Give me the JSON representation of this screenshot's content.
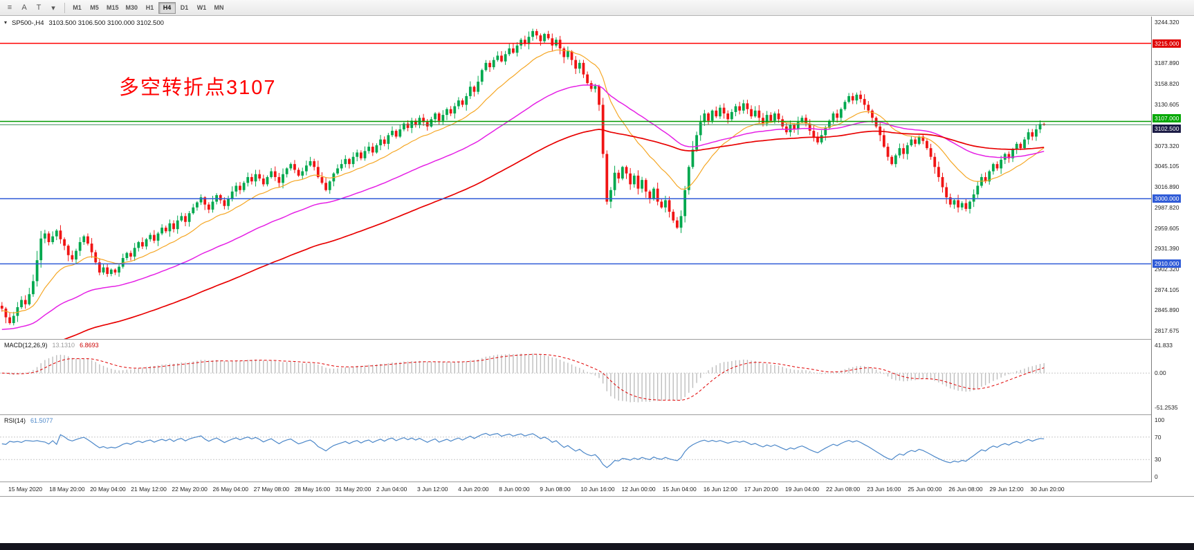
{
  "toolbar": {
    "left_icons": [
      {
        "name": "chart-properties-icon",
        "glyph": "≡"
      },
      {
        "name": "cursor-a-button",
        "glyph": "A"
      },
      {
        "name": "text-tool-button",
        "glyph": "T"
      },
      {
        "name": "dropdown-caret-icon",
        "glyph": "▾"
      }
    ],
    "timeframes": [
      "M1",
      "M5",
      "M15",
      "M30",
      "H1",
      "H4",
      "D1",
      "W1",
      "MN"
    ],
    "active_timeframe": "H4"
  },
  "chart_header": {
    "arrow": "▾",
    "symbol": "SP500-,H4",
    "ohlc": "3103.500 3106.500 3100.000 3102.500"
  },
  "annotation": {
    "text": "多空转折点3107",
    "color": "#ff0000"
  },
  "chart_data": {
    "type": "candlestick",
    "symbol": "SP500-",
    "timeframe": "H4",
    "ohlc_display": {
      "open": "3103.500",
      "high": "3106.500",
      "low": "3100.000",
      "close": "3102.500"
    },
    "visible_price_range": {
      "min": 2806,
      "max": 3252
    },
    "candle_colors": {
      "up": "#00a84e",
      "down": "#f01414"
    },
    "closes": [
      2848,
      2836,
      2828,
      2838,
      2850,
      2860,
      2854,
      2868,
      2886,
      2915,
      2945,
      2952,
      2940,
      2948,
      2956,
      2944,
      2935,
      2922,
      2916,
      2928,
      2940,
      2948,
      2938,
      2926,
      2912,
      2898,
      2905,
      2896,
      2902,
      2898,
      2906,
      2918,
      2925,
      2920,
      2932,
      2940,
      2934,
      2944,
      2950,
      2942,
      2952,
      2960,
      2955,
      2966,
      2958,
      2970,
      2976,
      2968,
      2980,
      2988,
      2995,
      3002,
      2992,
      2985,
      2996,
      3005,
      2998,
      2990,
      3000,
      3010,
      3018,
      3012,
      3022,
      3030,
      3024,
      3034,
      3028,
      3020,
      3030,
      3038,
      3030,
      3022,
      3034,
      3042,
      3048,
      3040,
      3032,
      3038,
      3046,
      3052,
      3044,
      3030,
      3022,
      3012,
      3024,
      3035,
      3042,
      3048,
      3055,
      3048,
      3058,
      3064,
      3056,
      3066,
      3072,
      3064,
      3074,
      3082,
      3076,
      3088,
      3094,
      3086,
      3096,
      3104,
      3098,
      3108,
      3102,
      3112,
      3106,
      3100,
      3110,
      3118,
      3108,
      3116,
      3124,
      3118,
      3128,
      3136,
      3130,
      3142,
      3155,
      3148,
      3162,
      3178,
      3188,
      3182,
      3192,
      3198,
      3190,
      3200,
      3208,
      3202,
      3212,
      3220,
      3214,
      3224,
      3232,
      3226,
      3218,
      3228,
      3222,
      3212,
      3220,
      3208,
      3196,
      3204,
      3192,
      3180,
      3188,
      3172,
      3160,
      3152,
      3156,
      3130,
      3062,
      2996,
      3012,
      3036,
      3028,
      3044,
      3035,
      3020,
      3032,
      3014,
      3026,
      3010,
      3000,
      3014,
      2996,
      2988,
      2998,
      2982,
      2970,
      2960,
      2976,
      3012,
      3044,
      3068,
      3088,
      3106,
      3118,
      3108,
      3122,
      3114,
      3126,
      3118,
      3110,
      3120,
      3128,
      3122,
      3132,
      3124,
      3114,
      3122,
      3112,
      3104,
      3116,
      3108,
      3118,
      3110,
      3100,
      3092,
      3102,
      3096,
      3106,
      3112,
      3104,
      3094,
      3086,
      3078,
      3088,
      3098,
      3108,
      3118,
      3112,
      3124,
      3134,
      3142,
      3136,
      3144,
      3138,
      3130,
      3122,
      3112,
      3100,
      3088,
      3072,
      3058,
      3048,
      3060,
      3070,
      3062,
      3074,
      3082,
      3076,
      3086,
      3080,
      3070,
      3058,
      3044,
      3030,
      3016,
      3002,
      2992,
      2998,
      2988,
      2994,
      2986,
      2996,
      3006,
      3018,
      3030,
      3024,
      3038,
      3048,
      3042,
      3054,
      3062,
      3056,
      3068,
      3076,
      3070,
      3082,
      3092,
      3086,
      3096,
      3103.5,
      3102.5
    ],
    "moving_averages": [
      {
        "name": "ma-fast",
        "period": 18,
        "seed": 2845,
        "color": "#f5a623",
        "width": 1.2
      },
      {
        "name": "ma-medium",
        "period": 55,
        "seed": 2818,
        "color": "#e520e5",
        "width": 1.5
      },
      {
        "name": "ma-slow",
        "period": 110,
        "seed": 2772,
        "color": "#e80000",
        "width": 1.7
      }
    ],
    "horizontal_lines": [
      {
        "value": 3215.0,
        "label": "3215.000",
        "color": "#ff0000",
        "badge_bg": "#e00000"
      },
      {
        "value": 3107.0,
        "label": "3107.000",
        "color": "#009a00",
        "badge_bg": "#00a800"
      },
      {
        "value": 3000.0,
        "label": "3000.000",
        "color": "#2f5bd7",
        "badge_bg": "#2f5bd7"
      },
      {
        "value": 2910.0,
        "label": "2910.000",
        "color": "#2f5bd7",
        "badge_bg": "#2f5bd7"
      }
    ],
    "current_price": {
      "value": 3102.5,
      "label": "3102.500",
      "badge_bg": "#1c1c46",
      "line_color": "#3e8e5a"
    },
    "y_axis_ticks": [
      3244.32,
      3187.89,
      3158.82,
      3130.605,
      3073.32,
      3045.105,
      3016.89,
      2987.82,
      2959.605,
      2931.39,
      2902.32,
      2874.105,
      2845.89,
      2817.675
    ],
    "indicators": [
      {
        "id": "macd",
        "label": "MACD(12,26,9)",
        "values_text": [
          "13.1310",
          "6.8693"
        ],
        "params": {
          "fast": 12,
          "slow": 26,
          "signal": 9
        },
        "range": {
          "min": -62,
          "max": 50
        },
        "y_ticks": [
          {
            "v": 41.833,
            "t": "41.833"
          },
          {
            "v": 0,
            "t": "0.00"
          },
          {
            "v": -51.2535,
            "t": "-51.2535"
          }
        ],
        "colors": {
          "histogram": "#bdbdbd",
          "signal": "#e00000",
          "zero_line": "#c8c8c8"
        }
      },
      {
        "id": "rsi",
        "label": "RSI(14)",
        "values_text": [
          "61.5077"
        ],
        "period": 14,
        "range": {
          "min": 0,
          "max": 100
        },
        "levels": [
          70,
          30
        ],
        "y_ticks": [
          {
            "v": 100,
            "t": "100"
          },
          {
            "v": 70,
            "t": "70"
          },
          {
            "v": 30,
            "t": "30"
          },
          {
            "v": 0,
            "t": "0"
          }
        ],
        "colors": {
          "line": "#4a86c8",
          "levels": "#c8c8c8"
        }
      }
    ],
    "x_labels": [
      "15 May 2020",
      "18 May 20:00",
      "20 May 04:00",
      "21 May 12:00",
      "22 May 20:00",
      "26 May 04:00",
      "27 May 08:00",
      "28 May 16:00",
      "31 May 20:00",
      "2 Jun 04:00",
      "3 Jun 12:00",
      "4 Jun 20:00",
      "8 Jun 00:00",
      "9 Jun 08:00",
      "10 Jun 16:00",
      "12 Jun 00:00",
      "15 Jun 04:00",
      "16 Jun 12:00",
      "17 Jun 20:00",
      "19 Jun 04:00",
      "22 Jun 08:00",
      "23 Jun 16:00",
      "25 Jun 00:00",
      "26 Jun 08:00",
      "29 Jun 12:00",
      "30 Jun 20:00"
    ]
  }
}
